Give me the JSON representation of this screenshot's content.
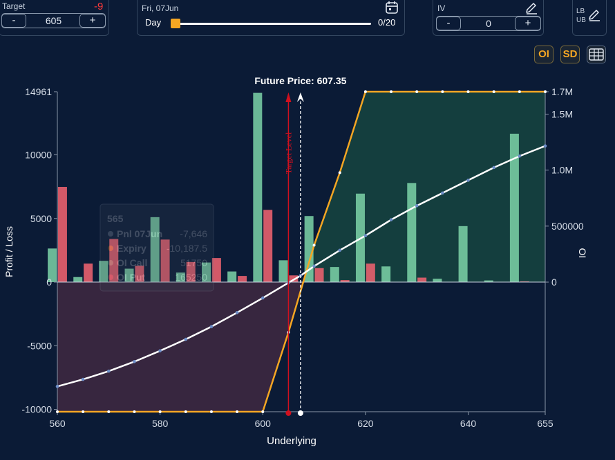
{
  "controls": {
    "target": {
      "label": "Target",
      "delta": "-9",
      "value": "605",
      "minus": "-",
      "plus": "+"
    },
    "day": {
      "date": "Fri, 07Jun",
      "label": "Day",
      "progress": "0/20",
      "progress_fraction": 0
    },
    "iv": {
      "label": "IV",
      "value": "0",
      "minus": "-",
      "plus": "+"
    },
    "bounds": {
      "lb": "LB",
      "ub": "UB"
    },
    "toolbar": {
      "oi": "OI",
      "sd": "SD"
    }
  },
  "tooltip": {
    "title": "565",
    "rows": [
      {
        "name": "Pnl 07Jun",
        "value": "-7,646",
        "color": "#cfd6e0"
      },
      {
        "name": "Expiry",
        "value": "-10,187.5",
        "color": "#f5a623"
      },
      {
        "name": "OI Call",
        "value": "51750",
        "color": "#7dd3a8"
      },
      {
        "name": "OI Put",
        "value": "165250",
        "color": "#e8606e"
      }
    ]
  },
  "chart_data": {
    "type": "bar+line",
    "annotations": {
      "future_price": "Future Price: 607.35",
      "target_level": "Target Level"
    },
    "xlabel": "Underlying",
    "ylabel_left": "Profit / Loss",
    "ylabel_right": "OI",
    "x_ticks": [
      "560",
      "580",
      "600",
      "620",
      "640",
      "655"
    ],
    "y_left_ticks": [
      "14961",
      "10000",
      "5000",
      "0",
      "-5000",
      "-10000"
    ],
    "y_right_ticks": [
      "1.7M",
      "1.5M",
      "1.0M",
      "500000",
      "0"
    ],
    "xlim": [
      560,
      655
    ],
    "ylim_left": [
      -10188,
      14961
    ],
    "ylim_right": [
      0,
      1700000
    ],
    "future_price": 607.35,
    "target_level": 605,
    "colors": {
      "call": "#7dd3a8",
      "put": "#e8606e",
      "expiry": "#f5a623",
      "pnl": "#ffffff",
      "profit_fill": "#15403f",
      "loss_fill": "#3a2740"
    },
    "series": [
      {
        "name": "OI Call",
        "x": [
          559,
          564,
          569,
          574,
          579,
          584,
          589,
          594,
          599,
          604,
          609,
          614,
          619,
          624,
          629,
          634,
          639,
          644,
          649
        ],
        "values": [
          300000,
          45000,
          190000,
          120000,
          580000,
          85000,
          175000,
          95000,
          1690000,
          195000,
          590000,
          135000,
          790000,
          140000,
          885000,
          30000,
          500000,
          15000,
          1325000
        ]
      },
      {
        "name": "OI Put",
        "x": [
          561,
          566,
          571,
          576,
          581,
          586,
          591,
          596,
          601,
          606,
          611,
          616,
          621,
          626,
          631,
          636,
          641,
          646,
          651
        ],
        "values": [
          850000,
          165000,
          385000,
          145000,
          380000,
          180000,
          215000,
          55000,
          645000,
          60000,
          125000,
          18000,
          165000,
          0,
          40000,
          0,
          0,
          0,
          6000
        ]
      },
      {
        "name": "Expiry",
        "x": [
          560,
          565,
          570,
          575,
          580,
          585,
          590,
          595,
          600,
          605,
          610,
          615,
          620,
          625,
          630,
          635,
          640,
          645,
          650,
          655
        ],
        "values": [
          -10188,
          -10188,
          -10188,
          -10188,
          -10188,
          -10188,
          -10188,
          -10188,
          -10188,
          -3950,
          2900,
          8600,
          14961,
          14961,
          14961,
          14961,
          14961,
          14961,
          14961,
          14961
        ]
      },
      {
        "name": "Pnl 07Jun",
        "x": [
          560,
          565,
          570,
          575,
          580,
          585,
          590,
          595,
          600,
          605,
          607.35,
          610,
          615,
          620,
          625,
          630,
          635,
          640,
          645,
          650,
          655
        ],
        "values": [
          -8200,
          -7646,
          -7000,
          -6250,
          -5400,
          -4500,
          -3500,
          -2400,
          -1250,
          -50,
          500,
          1250,
          2500,
          3650,
          4900,
          6000,
          7000,
          8000,
          9000,
          9900,
          10700
        ]
      }
    ]
  }
}
